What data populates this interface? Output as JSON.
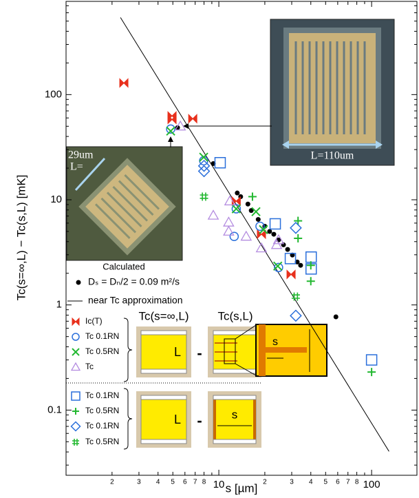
{
  "chart_data": {
    "type": "scatter",
    "x_label": "s [µm]",
    "y_label": "Tc(s=∞,L) − Tc(s,L)   [mK]",
    "log_x": true,
    "log_y": true,
    "xlim": [
      1,
      198
    ],
    "ylim": [
      0.024,
      770
    ],
    "xticks": [
      2,
      3,
      4,
      5,
      6,
      7,
      8,
      10,
      {
        "value": 20,
        "label": "2"
      },
      {
        "value": 30,
        "label": "3"
      },
      {
        "value": 40,
        "label": "4"
      },
      {
        "value": 50,
        "label": "5"
      },
      {
        "value": 60,
        "label": "6"
      },
      {
        "value": 70,
        "label": "7"
      },
      {
        "value": 80,
        "label": "8"
      },
      100
    ],
    "yticks": [
      0.1,
      1,
      10,
      100
    ],
    "series": [
      {
        "name": "Dₛ = Dₙ/2 = 0.09 m²/s",
        "color": "#000000",
        "marker": "dot",
        "x": [
          5.37,
          9.2,
          13.2,
          13.9,
          15.5,
          16.3,
          18.1,
          20.0,
          21.5,
          22.9,
          24.6,
          26.5,
          28.2,
          30.3,
          32.6,
          34.3,
          58.4
        ],
        "values": [
          48.5,
          22.1,
          11.6,
          10.7,
          9.1,
          7.9,
          6.5,
          5.6,
          5.0,
          4.7,
          4.15,
          3.73,
          3.37,
          2.98,
          2.56,
          2.38,
          0.77
        ]
      },
      {
        "name": "near Tc approximation",
        "color": "#000000",
        "marker": "line",
        "x": [
          2.27,
          130
        ],
        "values": [
          541,
          0.0405
        ]
      },
      {
        "name": "Ic(T)",
        "color": "#e8301c",
        "marker": "bowtie",
        "x": [
          2.39,
          4.94,
          4.94,
          6.75,
          13,
          19,
          29.7
        ],
        "values": [
          129,
          62.7,
          58,
          59,
          9.7,
          4.7,
          1.95
        ]
      },
      {
        "name": "Tc 0.1RN",
        "color": "#2a6fdb",
        "marker": "circle",
        "x": [
          4.84,
          7.96,
          13,
          12.6,
          18.6,
          24.6
        ],
        "values": [
          47,
          23.5,
          8.2,
          4.48,
          5.6,
          2.27
        ]
      },
      {
        "name": "Tc 0.5RN",
        "color": "#22b830",
        "marker": "cross",
        "x": [
          4.84,
          7.96,
          13,
          17.5,
          19.6,
          24.3
        ],
        "values": [
          45,
          25.4,
          8.2,
          7.7,
          5.2,
          2.34
        ]
      },
      {
        "name": "Tc",
        "color": "#b48ce0",
        "marker": "triangle",
        "x": [
          5.6,
          11.8,
          11.6,
          9.2,
          15.1,
          11.6,
          19,
          24.6,
          23.9
        ],
        "values": [
          50,
          9.7,
          6.1,
          7.1,
          4.48,
          5.0,
          3.47,
          4.15,
          3.73
        ]
      },
      {
        "name": "Tc 0.1RN",
        "color": "#2a6fdb",
        "marker": "square",
        "x": [
          10.2,
          23.4,
          29.4,
          40.2,
          40.2,
          100
        ],
        "values": [
          22.5,
          5.9,
          2.76,
          2.85,
          2.2,
          0.3
        ]
      },
      {
        "name": "Tc 0.5RN",
        "color": "#22b830",
        "marker": "plus",
        "x": [
          16.6,
          33,
          33,
          40,
          40,
          100
        ],
        "values": [
          10.7,
          6.3,
          4.3,
          2.38,
          1.68,
          0.23
        ]
      },
      {
        "name": "Tc 0.1RN",
        "color": "#2a6fdb",
        "marker": "diamond",
        "x": [
          8,
          8,
          31.9,
          31.9
        ],
        "values": [
          18.7,
          21,
          5.4,
          0.79
        ]
      },
      {
        "name": "Tc 0.5RN",
        "color": "#22b830",
        "marker": "hash",
        "x": [
          8,
          31.9
        ],
        "values": [
          10.7,
          1.2
        ]
      }
    ],
    "annotations": [
      "Tc(s=∞,L)",
      "Tc(s,L)",
      "L",
      "-",
      "s",
      "L",
      "-",
      "s",
      "29um",
      "L=",
      "L=110um",
      "Calculated",
      "s"
    ]
  }
}
